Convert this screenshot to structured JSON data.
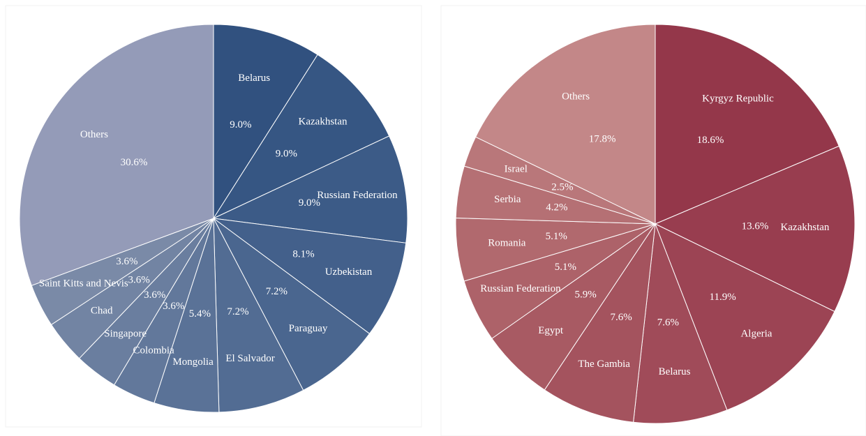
{
  "chart_data": [
    {
      "type": "pie",
      "categories": [
        "Belarus",
        "Kazakhstan",
        "Russian Federation",
        "Uzbekistan",
        "Paraguay",
        "El Salvador",
        "Mongolia",
        "Colombia",
        "Singapore",
        "Chad",
        "Saint Kitts and Nevis",
        "Others"
      ],
      "values": [
        9.0,
        9.0,
        9.0,
        8.1,
        7.2,
        7.2,
        5.4,
        3.6,
        3.6,
        3.6,
        3.6,
        30.6
      ],
      "value_labels": [
        "9.0%",
        "9.0%",
        "9.0%",
        "8.1%",
        "7.2%",
        "7.2%",
        "5.4%",
        "3.6%",
        "3.6%",
        "3.6%",
        "3.6%",
        "30.6%"
      ],
      "colors": [
        "#31517f",
        "#365683",
        "#3c5b87",
        "#43608b",
        "#4a668f",
        "#526c93",
        "#5a7297",
        "#62789b",
        "#6a7e9f",
        "#7284a3",
        "#7a8aa7",
        "#949bb8"
      ]
    },
    {
      "type": "pie",
      "categories": [
        "Kyrgyz Republic",
        "Kazakhstan",
        "Algeria",
        "Belarus",
        "The Gambia",
        "Egypt",
        "Russian Federation",
        "Romania",
        "Serbia",
        "Israel",
        "Others"
      ],
      "values": [
        18.6,
        13.6,
        11.9,
        7.6,
        7.6,
        5.9,
        5.1,
        5.1,
        4.2,
        2.5,
        17.8
      ],
      "value_labels": [
        "18.6%",
        "13.6%",
        "11.9%",
        "7.6%",
        "7.6%",
        "5.9%",
        "5.1%",
        "5.1%",
        "4.2%",
        "2.5%",
        "17.8%"
      ],
      "colors": [
        "#94374a",
        "#983d4f",
        "#9c4454",
        "#a04b59",
        "#a4535e",
        "#a85a63",
        "#ad6269",
        "#b1696e",
        "#b57074",
        "#b9777a",
        "#c38788"
      ]
    }
  ]
}
